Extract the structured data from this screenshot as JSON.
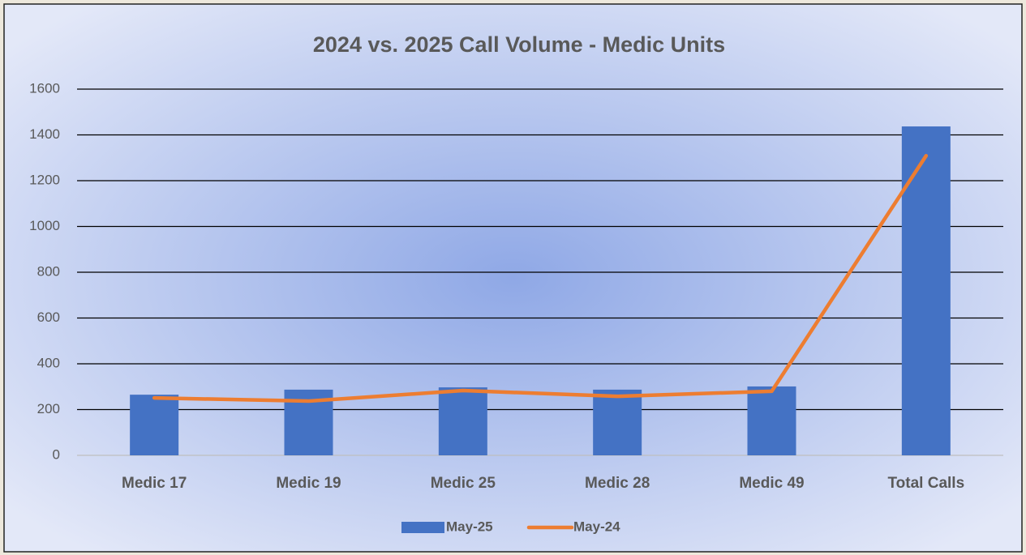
{
  "chart_data": {
    "type": "bar",
    "title": "2024 vs. 2025 Call Volume - Medic Units",
    "categories": [
      "Medic 17",
      "Medic 19",
      "Medic 25",
      "Medic 28",
      "Medic 49",
      "Total Calls"
    ],
    "series": [
      {
        "name": "May-25",
        "type": "bar",
        "color": "#4472c4",
        "values": [
          265,
          287,
          297,
          287,
          301,
          1437
        ]
      },
      {
        "name": "May-24",
        "type": "line",
        "color": "#ed7d31",
        "values": [
          251,
          237,
          283,
          258,
          280,
          1309
        ]
      }
    ],
    "ylim": [
      0,
      1600
    ],
    "yticks": [
      0,
      200,
      400,
      600,
      800,
      1000,
      1200,
      1400,
      1600
    ],
    "grid": true,
    "legend": "bottom"
  }
}
